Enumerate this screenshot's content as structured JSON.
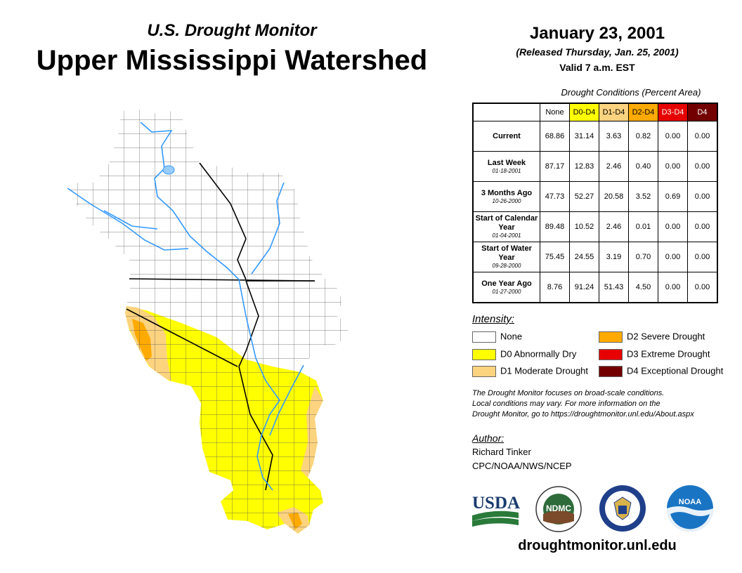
{
  "header": {
    "subtitle": "U.S. Drought Monitor",
    "title": "Upper Mississippi Watershed",
    "date": "January 23, 2001",
    "released": "(Released Thursday, Jan. 25, 2001)",
    "valid": "Valid 7 a.m. EST"
  },
  "table": {
    "title": "Drought Conditions (Percent Area)",
    "columns": [
      "None",
      "D0-D4",
      "D1-D4",
      "D2-D4",
      "D3-D4",
      "D4"
    ],
    "rows": [
      {
        "label": "Current",
        "sub": "",
        "values": [
          "68.86",
          "31.14",
          "3.63",
          "0.82",
          "0.00",
          "0.00"
        ]
      },
      {
        "label": "Last Week",
        "sub": "01-18-2001",
        "values": [
          "87.17",
          "12.83",
          "2.46",
          "0.40",
          "0.00",
          "0.00"
        ]
      },
      {
        "label": "3 Months Ago",
        "sub": "10-26-2000",
        "values": [
          "47.73",
          "52.27",
          "20.58",
          "3.52",
          "0.69",
          "0.00"
        ]
      },
      {
        "label": "Start of Calendar Year",
        "sub": "01-04-2001",
        "values": [
          "89.48",
          "10.52",
          "2.46",
          "0.01",
          "0.00",
          "0.00"
        ]
      },
      {
        "label": "Start of Water Year",
        "sub": "09-28-2000",
        "values": [
          "75.45",
          "24.55",
          "3.19",
          "0.70",
          "0.00",
          "0.00"
        ]
      },
      {
        "label": "One Year Ago",
        "sub": "01-27-2000",
        "values": [
          "8.76",
          "91.24",
          "51.43",
          "4.50",
          "0.00",
          "0.00"
        ]
      }
    ]
  },
  "legend": {
    "title": "Intensity:",
    "items": [
      {
        "label": "None",
        "color": "#ffffff"
      },
      {
        "label": "D0 Abnormally Dry",
        "color": "#ffff00"
      },
      {
        "label": "D1 Moderate Drought",
        "color": "#fcd37f"
      },
      {
        "label": "D2 Severe Drought",
        "color": "#ffaa00"
      },
      {
        "label": "D3 Extreme Drought",
        "color": "#e60000"
      },
      {
        "label": "D4 Exceptional Drought",
        "color": "#730000"
      }
    ]
  },
  "note": {
    "line1": "The Drought Monitor focuses on broad-scale conditions.",
    "line2": "Local conditions may vary. For more information on the",
    "line3": "Drought Monitor, go to https://droughtmonitor.unl.edu/About.aspx"
  },
  "author": {
    "title": "Author:",
    "name": "Richard Tinker",
    "org": "CPC/NOAA/NWS/NCEP"
  },
  "logos": {
    "usda": "USDA",
    "ndmc": "NDMC",
    "noaa": "NOAA"
  },
  "website": "droughtmonitor.unl.edu",
  "colors": {
    "none": "#ffffff",
    "d0": "#ffff00",
    "d1": "#fcd37f",
    "d2": "#ffaa00",
    "river": "#3399ff"
  }
}
